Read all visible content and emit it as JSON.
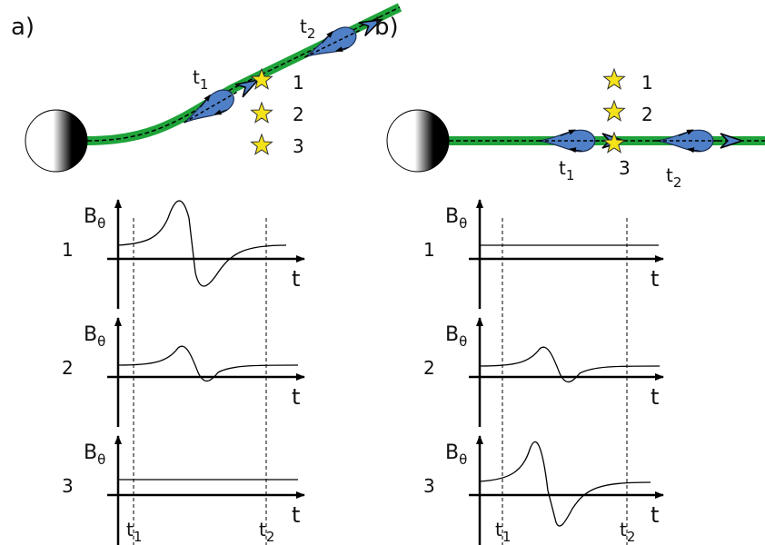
{
  "panels": [
    {
      "label": "a)",
      "track_times": [
        {
          "t": "t",
          "sub": "1"
        },
        {
          "t": "t",
          "sub": "2"
        }
      ],
      "stars": [
        "1",
        "2",
        "3"
      ],
      "plots": [
        {
          "number": "1",
          "y_label": "B",
          "y_label_sub": "θ",
          "x_label": "t"
        },
        {
          "number": "2",
          "y_label": "B",
          "y_label_sub": "θ",
          "x_label": "t"
        },
        {
          "number": "3",
          "y_label": "B",
          "y_label_sub": "θ",
          "x_label": "t"
        }
      ],
      "axis_times": [
        {
          "t": "t",
          "sub": "1"
        },
        {
          "t": "t",
          "sub": "2"
        }
      ]
    },
    {
      "label": "b)",
      "track_times": [
        {
          "t": "t",
          "sub": "1"
        },
        {
          "t": "t",
          "sub": "2"
        }
      ],
      "stars": [
        "1",
        "2",
        "3"
      ],
      "plots": [
        {
          "number": "1",
          "y_label": "B",
          "y_label_sub": "θ",
          "x_label": "t"
        },
        {
          "number": "2",
          "y_label": "B",
          "y_label_sub": "θ",
          "x_label": "t"
        },
        {
          "number": "3",
          "y_label": "B",
          "y_label_sub": "θ",
          "x_label": "t"
        }
      ],
      "axis_times": [
        {
          "t": "t",
          "sub": "1"
        },
        {
          "t": "t",
          "sub": "2"
        }
      ]
    }
  ]
}
